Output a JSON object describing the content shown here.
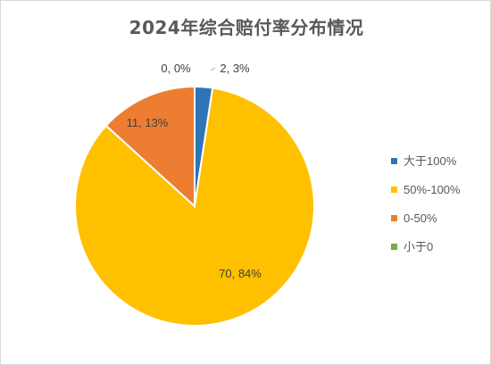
{
  "chart_data": {
    "type": "pie",
    "title": "2024年综合赔付率分布情况",
    "start_angle_deg": 0,
    "direction": "clockwise",
    "legend_position": "right",
    "slices": [
      {
        "name": "大于100%",
        "value": 2,
        "percent": "3%",
        "label": "2, 3%",
        "color": "#2e75b6"
      },
      {
        "name": "50%-100%",
        "value": 70,
        "percent": "84%",
        "label": "70, 84%",
        "color": "#ffc000"
      },
      {
        "name": "0-50%",
        "value": 11,
        "percent": "13%",
        "label": "11, 13%",
        "color": "#ed7d31"
      },
      {
        "name": "小于0",
        "value": 0,
        "percent": "0%",
        "label": "0, 0%",
        "color": "#70ad47"
      }
    ]
  }
}
